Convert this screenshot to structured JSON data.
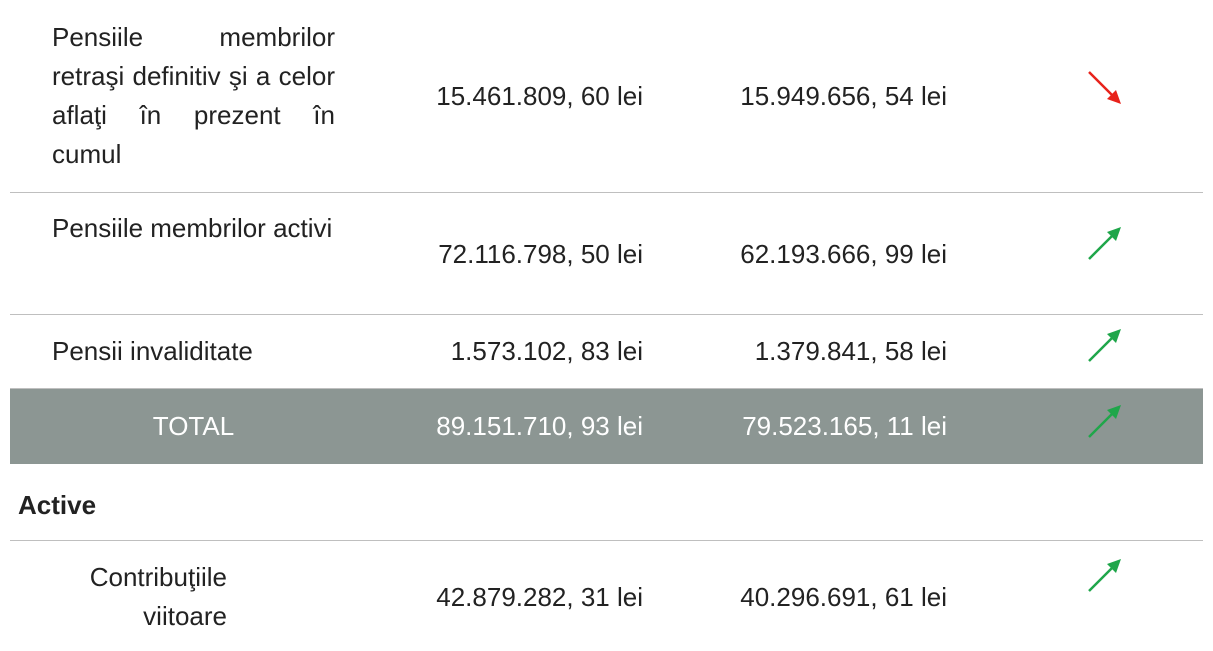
{
  "table": {
    "rows": [
      [
        "Pensiile membrilor retraşi definitiv şi a celor aflaţi în prezent în cumul",
        "15.461.809, 60 lei",
        "15.949.656, 54 lei"
      ],
      [
        "Pensiile membrilor activi",
        "72.116.798, 50 lei",
        "62.193.666, 99 lei"
      ],
      [
        "Pensii invaliditate",
        "1.573.102, 83 lei",
        "1.379.841, 58 lei"
      ],
      [
        "TOTAL",
        "89.151.710, 93 lei",
        "79.523.165, 11 lei"
      ]
    ],
    "section": "Active",
    "section_rows": [
      [
        "Contribuţiile viitoare",
        "42.879.282, 31 lei",
        "40.296.691, 61 lei"
      ]
    ]
  }
}
